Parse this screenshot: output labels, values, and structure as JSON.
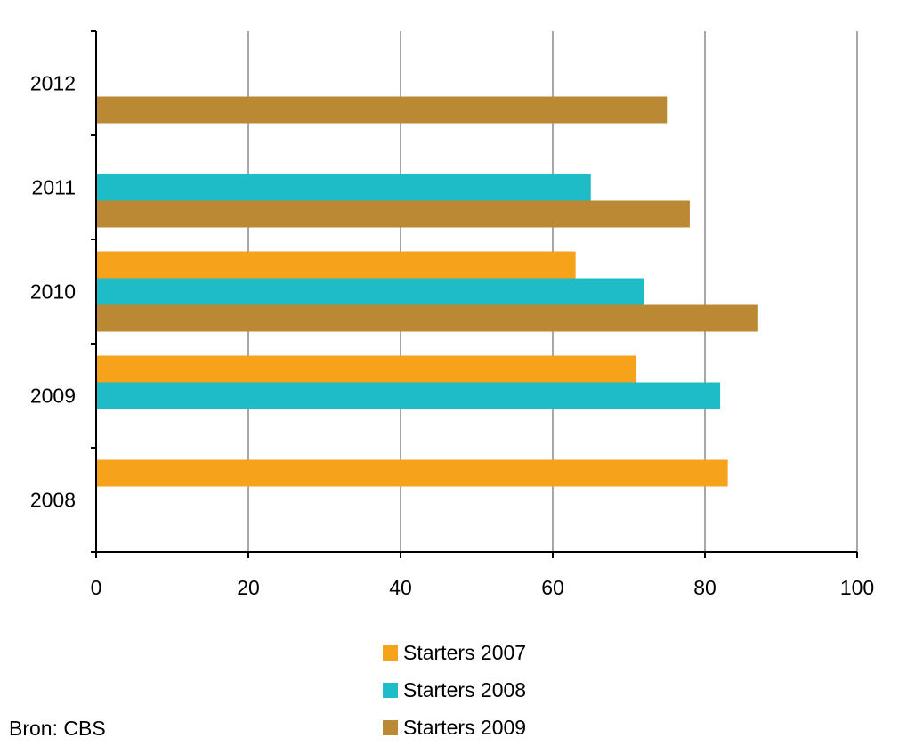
{
  "chart_data": {
    "type": "bar",
    "orientation": "horizontal",
    "categories": [
      "2008",
      "2009",
      "2010",
      "2011",
      "2012"
    ],
    "series": [
      {
        "name": "Starters 2007",
        "color": "#f7a21b",
        "values": [
          83,
          71,
          63,
          null,
          null
        ]
      },
      {
        "name": "Starters 2008",
        "color": "#1dbcc6",
        "values": [
          null,
          82,
          72,
          65,
          null
        ]
      },
      {
        "name": "Starters 2009",
        "color": "#bb8833",
        "values": [
          null,
          null,
          87,
          78,
          75
        ]
      }
    ],
    "xlim": [
      0,
      100
    ],
    "xticks": [
      0,
      20,
      40,
      60,
      80,
      100
    ],
    "xunit": "%",
    "grid": true,
    "legend_position": "bottom"
  },
  "source": "Bron: CBS"
}
